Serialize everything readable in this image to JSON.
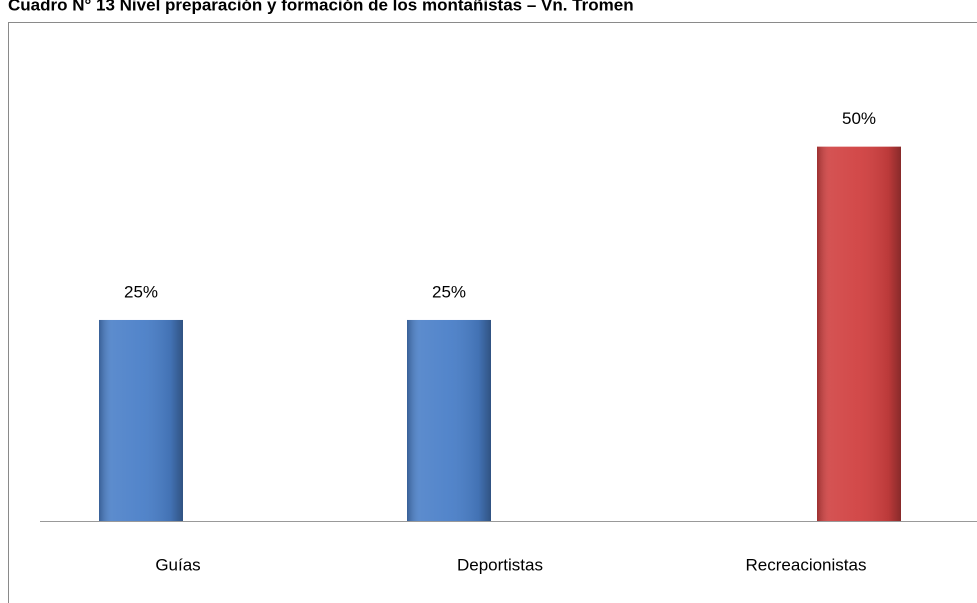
{
  "chart_data": {
    "type": "bar",
    "title": "Cuadro N° 13 Nivel preparación y formación de los montañistas – Vn. Tromen",
    "categories": [
      "Guías",
      "Deportistas",
      "Recreacionistas"
    ],
    "values": [
      25,
      25,
      50
    ],
    "value_labels": [
      "25%",
      "25%",
      "50%"
    ],
    "colors": [
      "#4a7fc8",
      "#4a7fc8",
      "#d04040"
    ],
    "ylim": [
      -4,
      55
    ]
  }
}
